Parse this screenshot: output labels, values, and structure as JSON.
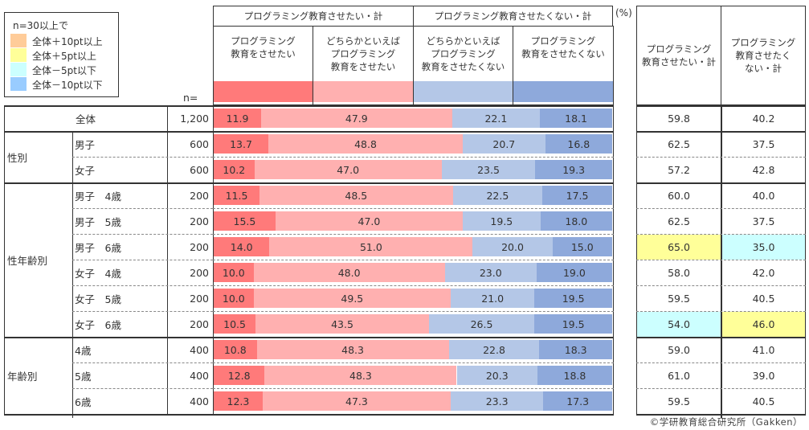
{
  "legend": {
    "title": "n=30以上で",
    "items": [
      {
        "label": "全体＋10pt以上",
        "color": "#FFCC99"
      },
      {
        "label": "全体＋5pt以上",
        "color": "#FFFF99"
      },
      {
        "label": "全体－5pt以下",
        "color": "#CCFFFF"
      },
      {
        "label": "全体－10pt以下",
        "color": "#99CCFF"
      }
    ]
  },
  "header": {
    "n_label": "n=",
    "unit": "(%)",
    "group_want": "プログラミング教育させたい・計",
    "group_not_want": "プログラミング教育させたくない・計",
    "total_want": "プログラミング\n教育させたい・計",
    "total_not_want": "プログラミング\n教育させたく\nない・計"
  },
  "chart_data": {
    "type": "bar",
    "subtype": "stacked-horizontal-100",
    "title": "",
    "unit": "%",
    "xlim": [
      0,
      100
    ],
    "series": [
      {
        "name": "プログラミング\n教育をさせたい",
        "color": "#FF7A7A",
        "values": [
          11.9,
          13.7,
          10.2,
          11.5,
          15.5,
          14.0,
          10.0,
          10.0,
          10.5,
          10.8,
          12.8,
          12.3
        ]
      },
      {
        "name": "どちらかといえば\nプログラミング\n教育をさせたい",
        "color": "#FFB0B0",
        "values": [
          47.9,
          48.8,
          47.0,
          48.5,
          47.0,
          51.0,
          48.0,
          49.5,
          43.5,
          48.3,
          48.3,
          47.3
        ]
      },
      {
        "name": "どちらかといえば\nプログラミング\n教育をさせたくない",
        "color": "#B4C7E7",
        "values": [
          22.1,
          20.7,
          23.5,
          22.5,
          19.5,
          20.0,
          23.0,
          21.0,
          26.5,
          22.8,
          20.3,
          23.3
        ]
      },
      {
        "name": "プログラミング\n教育をさせたくない",
        "color": "#8EA9DB",
        "values": [
          18.1,
          16.8,
          19.3,
          17.5,
          18.0,
          15.0,
          19.0,
          19.5,
          19.5,
          18.3,
          18.8,
          17.3
        ]
      }
    ],
    "rows": [
      {
        "group": "全体",
        "label": "",
        "n": "1,200",
        "want_total": "59.8",
        "not_want_total": "40.2",
        "want_hl": "",
        "not_want_hl": ""
      },
      {
        "group": "性別",
        "label": "男子",
        "n": "600",
        "want_total": "62.5",
        "not_want_total": "37.5",
        "want_hl": "",
        "not_want_hl": ""
      },
      {
        "group": "性別",
        "label": "女子",
        "n": "600",
        "want_total": "57.2",
        "not_want_total": "42.8",
        "want_hl": "",
        "not_want_hl": ""
      },
      {
        "group": "性年齢別",
        "label": "男子　4歳",
        "n": "200",
        "want_total": "60.0",
        "not_want_total": "40.0",
        "want_hl": "",
        "not_want_hl": ""
      },
      {
        "group": "性年齢別",
        "label": "男子　5歳",
        "n": "200",
        "want_total": "62.5",
        "not_want_total": "37.5",
        "want_hl": "",
        "not_want_hl": ""
      },
      {
        "group": "性年齢別",
        "label": "男子　6歳",
        "n": "200",
        "want_total": "65.0",
        "not_want_total": "35.0",
        "want_hl": "#FFFF99",
        "not_want_hl": "#CCFFFF"
      },
      {
        "group": "性年齢別",
        "label": "女子　4歳",
        "n": "200",
        "want_total": "58.0",
        "not_want_total": "42.0",
        "want_hl": "",
        "not_want_hl": ""
      },
      {
        "group": "性年齢別",
        "label": "女子　5歳",
        "n": "200",
        "want_total": "59.5",
        "not_want_total": "40.5",
        "want_hl": "",
        "not_want_hl": ""
      },
      {
        "group": "性年齢別",
        "label": "女子　6歳",
        "n": "200",
        "want_total": "54.0",
        "not_want_total": "46.0",
        "want_hl": "#CCFFFF",
        "not_want_hl": "#FFFF99"
      },
      {
        "group": "年齢別",
        "label": "4歳",
        "n": "400",
        "want_total": "59.0",
        "not_want_total": "41.0",
        "want_hl": "",
        "not_want_hl": ""
      },
      {
        "group": "年齢別",
        "label": "5歳",
        "n": "400",
        "want_total": "61.0",
        "not_want_total": "39.0",
        "want_hl": "",
        "not_want_hl": ""
      },
      {
        "group": "年齢別",
        "label": "6歳",
        "n": "400",
        "want_total": "59.5",
        "not_want_total": "40.5",
        "want_hl": "",
        "not_want_hl": ""
      }
    ],
    "groups": [
      {
        "name": "全体",
        "start": 0,
        "count": 1
      },
      {
        "name": "性別",
        "start": 1,
        "count": 2
      },
      {
        "name": "性年齢別",
        "start": 3,
        "count": 6
      },
      {
        "name": "年齢別",
        "start": 9,
        "count": 3
      }
    ]
  },
  "footer": "©学研教育総合研究所（Gakken）"
}
